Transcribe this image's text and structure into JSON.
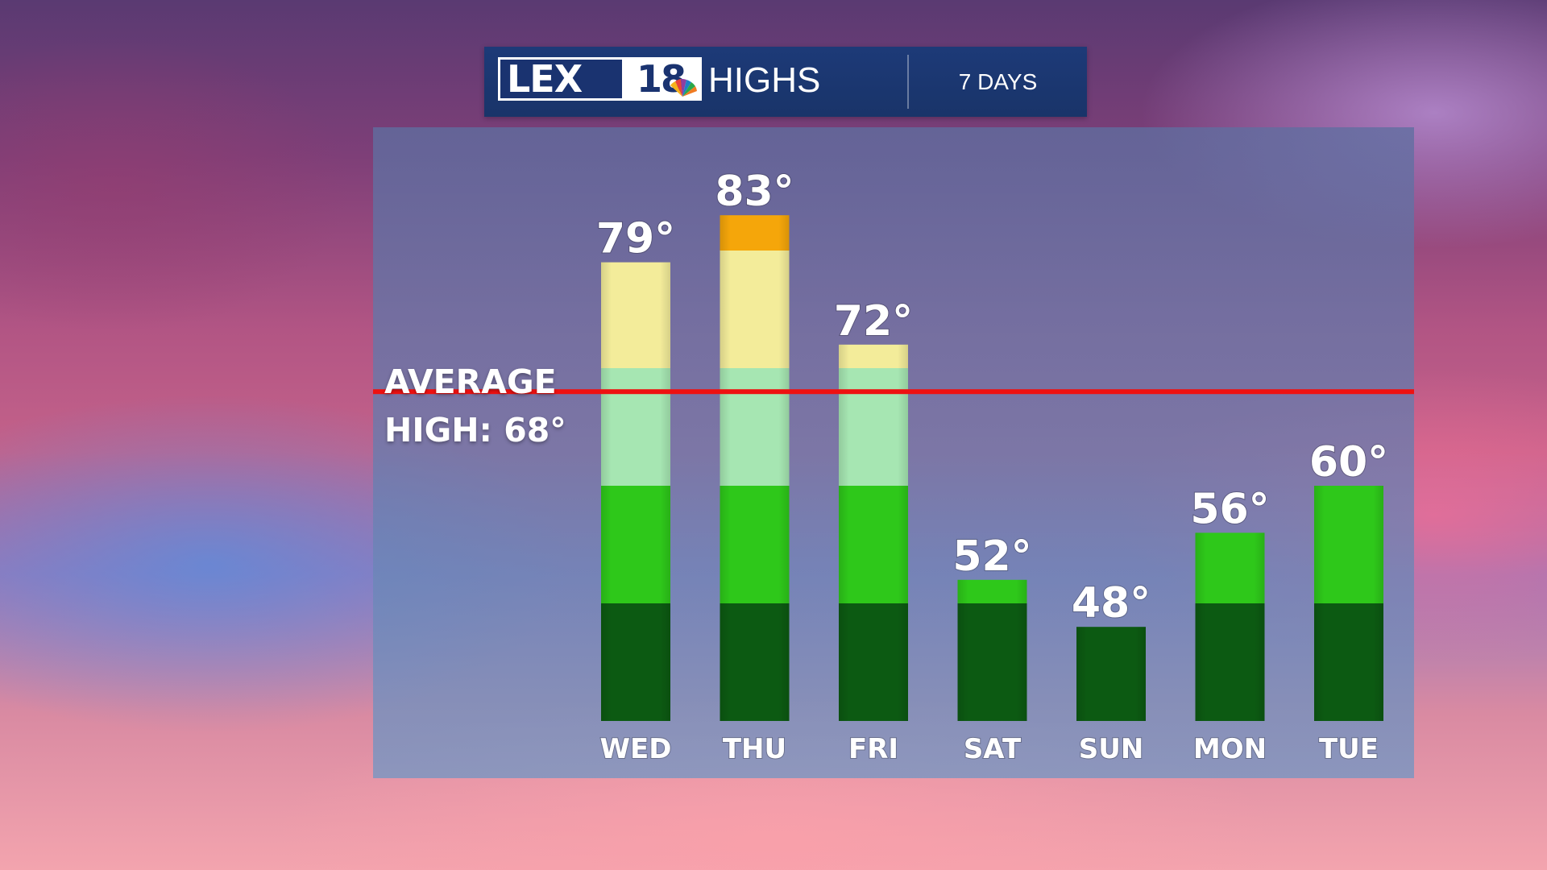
{
  "header": {
    "logo_text": "LEX",
    "logo_number": "18",
    "title": "HIGHS",
    "period": "7 DAYS"
  },
  "average": {
    "line1": "AVERAGE",
    "line2": "HIGH: 68°",
    "value": 68,
    "color": "#ee1111"
  },
  "chart_data": {
    "type": "bar",
    "categories": [
      "WED",
      "THU",
      "FRI",
      "SAT",
      "SUN",
      "MON",
      "TUE"
    ],
    "values": [
      79,
      83,
      72,
      52,
      48,
      56,
      60
    ],
    "value_labels": [
      "79°",
      "83°",
      "72°",
      "52°",
      "48°",
      "56°",
      "60°"
    ],
    "title": "HIGHS",
    "reference_line": 68,
    "color_bands": [
      {
        "from": 40,
        "to": 50,
        "color": "#0c5a12"
      },
      {
        "from": 50,
        "to": 60,
        "color": "#2ec81a"
      },
      {
        "from": 60,
        "to": 70,
        "color": "#a6e6b2"
      },
      {
        "from": 70,
        "to": 80,
        "color": "#f3ec9a"
      },
      {
        "from": 80,
        "to": 90,
        "color": "#f5a60a"
      },
      {
        "from": 90,
        "to": 100,
        "color": "#ee2a10"
      }
    ]
  }
}
